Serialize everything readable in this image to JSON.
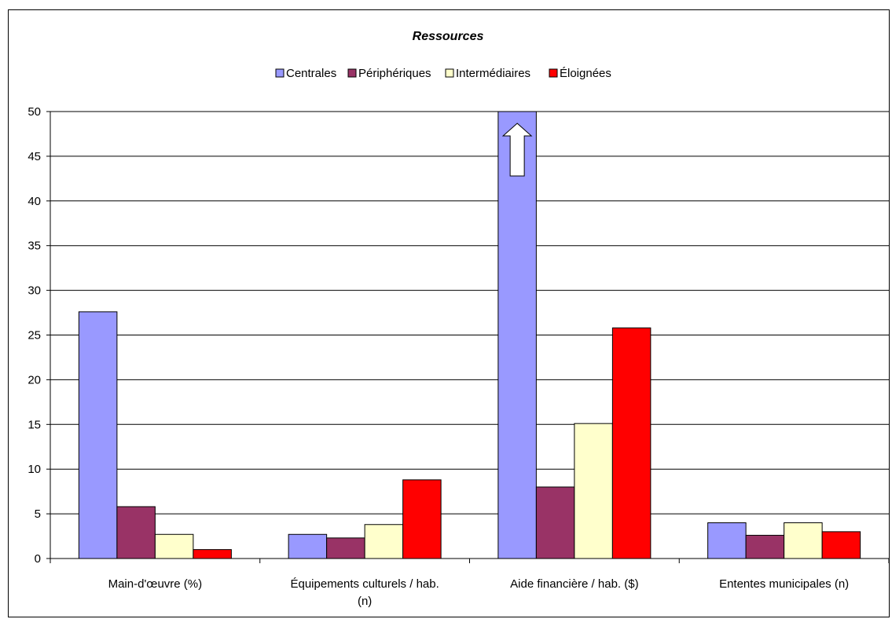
{
  "chart_data": {
    "type": "bar",
    "title": "Ressources",
    "xlabel": "",
    "ylabel": "",
    "ylim": [
      0,
      50
    ],
    "yticks": [
      0,
      5,
      10,
      15,
      20,
      25,
      30,
      35,
      40,
      45,
      50
    ],
    "grid": true,
    "legend_position": "top",
    "categories": [
      [
        "Main-d'œuvre (%)"
      ],
      [
        "Équipements culturels / hab.",
        "(n)"
      ],
      [
        "Aide financière / hab. ($)"
      ],
      [
        "Ententes municipales (n)"
      ]
    ],
    "series": [
      {
        "name": "Centrales",
        "color": "#9999FF",
        "values": [
          27.6,
          2.7,
          50,
          4.0
        ]
      },
      {
        "name": "Périphériques",
        "color": "#993366",
        "values": [
          5.8,
          2.3,
          8.0,
          2.6
        ]
      },
      {
        "name": "Intermédiaires",
        "color": "#FFFFCC",
        "values": [
          2.7,
          3.8,
          15.1,
          4.0
        ]
      },
      {
        "name": "Éloignées",
        "color": "#FF0000",
        "values": [
          1.0,
          8.8,
          25.8,
          3.0
        ]
      }
    ],
    "annotations": [
      {
        "type": "arrow-up",
        "category_index": 2,
        "series_index": 0,
        "meaning": "value exceeds axis maximum"
      }
    ]
  }
}
